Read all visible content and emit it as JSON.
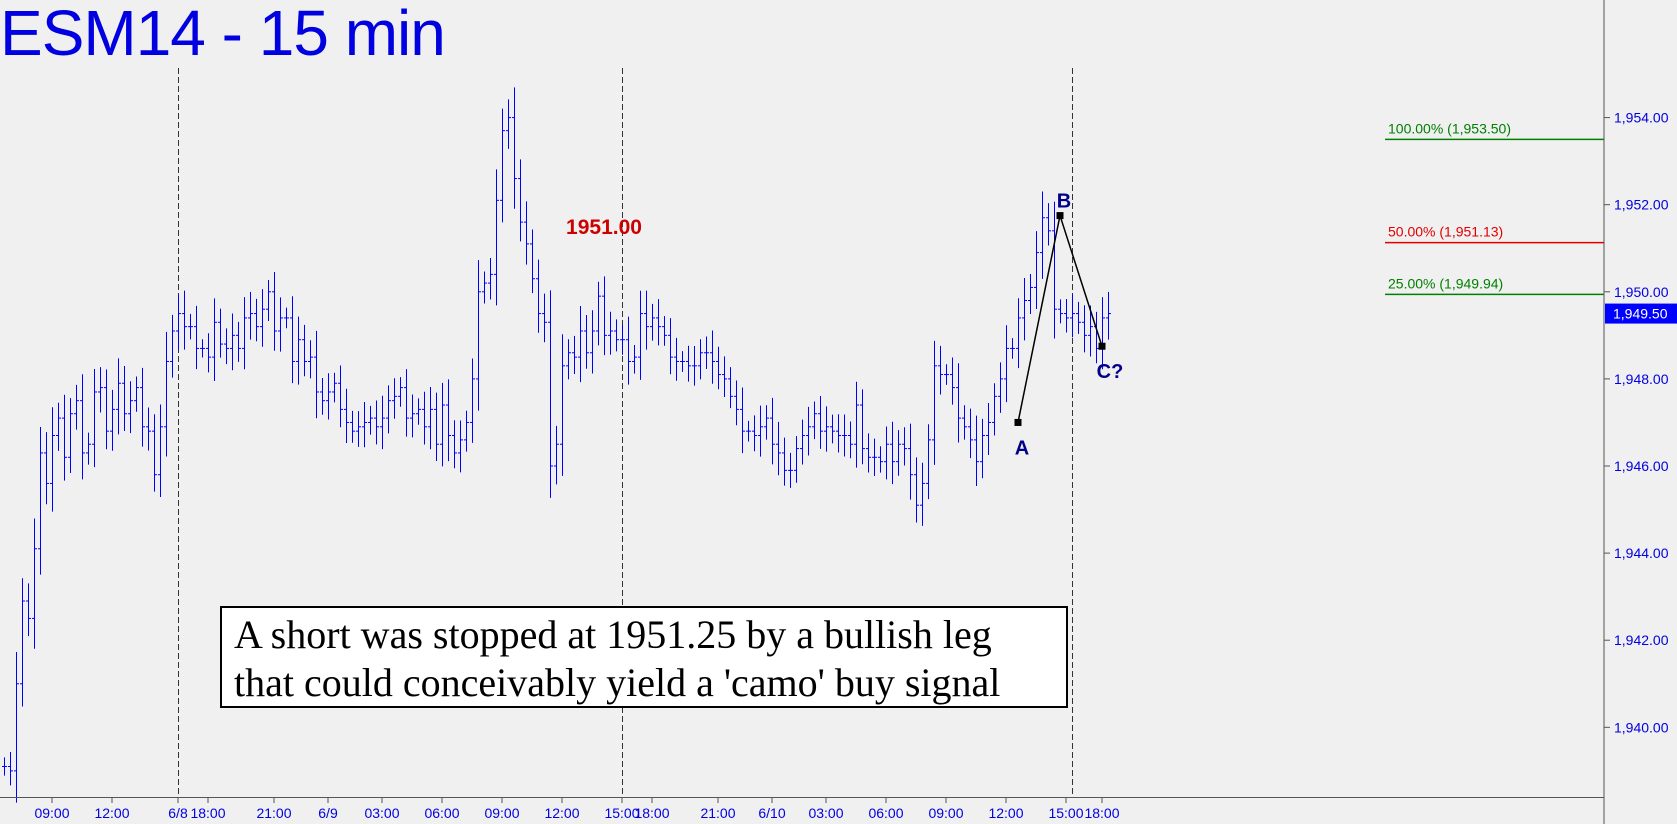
{
  "chart_data": {
    "type": "bar",
    "subtype": "ohlc",
    "title": "ESM14 - 15 min",
    "colors": {
      "bars": "#0000ff",
      "fib_green": "#008000",
      "fib_red": "#e00000",
      "pattern_line": "#000000",
      "labels": "#00008b",
      "price_label": "#cc0000"
    },
    "y_axis": {
      "ylim": [
        1938.4,
        1956.7
      ],
      "ticks": [
        "1,954.00",
        "1,952.00",
        "1,950.00",
        "1,948.00",
        "1,946.00",
        "1,944.00",
        "1,942.00",
        "1,940.00"
      ],
      "tick_values": [
        1954,
        1952,
        1950,
        1948,
        1946,
        1944,
        1942,
        1940
      ],
      "last_price_label": "1,949.50",
      "last_price": 1949.5
    },
    "x_axis": {
      "n_bars": 228,
      "ticks": [
        {
          "label": "09:00",
          "bar": 8
        },
        {
          "label": "12:00",
          "bar": 18
        },
        {
          "label": "6/8",
          "bar": 29
        },
        {
          "label": "18:00",
          "bar": 34
        },
        {
          "label": "21:00",
          "bar": 45
        },
        {
          "label": "6/9",
          "bar": 54
        },
        {
          "label": "03:00",
          "bar": 63
        },
        {
          "label": "06:00",
          "bar": 73
        },
        {
          "label": "09:00",
          "bar": 83
        },
        {
          "label": "12:00",
          "bar": 93
        },
        {
          "label": "15:00",
          "bar": 103
        },
        {
          "label": "18:00",
          "bar": 108
        },
        {
          "label": "21:00",
          "bar": 119
        },
        {
          "label": "6/10",
          "bar": 128
        },
        {
          "label": "03:00",
          "bar": 137
        },
        {
          "label": "06:00",
          "bar": 147
        },
        {
          "label": "09:00",
          "bar": 157
        },
        {
          "label": "12:00",
          "bar": 167
        },
        {
          "label": "15:00",
          "bar": 177
        },
        {
          "label": "18:00",
          "bar": 183
        }
      ],
      "session_lines": [
        29,
        103,
        178
      ]
    },
    "closes": [
      1939.1,
      1939.0,
      1941.0,
      1942.9,
      1942.5,
      1944.1,
      1946.3,
      1945.6,
      1946.7,
      1947.1,
      1946.2,
      1947.2,
      1947.5,
      1946.3,
      1946.5,
      1947.7,
      1947.8,
      1946.8,
      1947.3,
      1947.9,
      1947.2,
      1947.5,
      1947.8,
      1946.9,
      1946.8,
      1945.8,
      1946.9,
      1948.4,
      1949.1,
      1949.5,
      1949.2,
      1949.2,
      1948.7,
      1948.7,
      1948.5,
      1949.3,
      1948.8,
      1948.7,
      1949.0,
      1948.7,
      1949.4,
      1949.5,
      1949.2,
      1949.6,
      1950.0,
      1949.1,
      1949.4,
      1949.4,
      1948.4,
      1948.9,
      1948.4,
      1948.5,
      1947.7,
      1947.5,
      1947.7,
      1947.9,
      1947.3,
      1947.0,
      1946.8,
      1946.9,
      1947.0,
      1947.1,
      1946.9,
      1947.1,
      1947.5,
      1947.6,
      1947.8,
      1947.1,
      1947.2,
      1947.3,
      1946.9,
      1947.3,
      1946.5,
      1947.4,
      1946.7,
      1946.3,
      1946.6,
      1947.0,
      1948.0,
      1950.0,
      1950.2,
      1950.4,
      1952.1,
      1953.7,
      1954.0,
      1952.6,
      1951.6,
      1951.1,
      1950.3,
      1949.5,
      1949.3,
      1946.0,
      1946.5,
      1948.3,
      1948.6,
      1948.5,
      1949.1,
      1948.6,
      1949.1,
      1949.9,
      1949.0,
      1949.1,
      1948.9,
      1948.9,
      1948.4,
      1948.5,
      1949.5,
      1949.2,
      1949.4,
      1949.2,
      1949.0,
      1948.5,
      1948.4,
      1948.4,
      1948.3,
      1948.3,
      1948.6,
      1948.6,
      1948.4,
      1948.1,
      1948.0,
      1947.6,
      1947.3,
      1946.8,
      1946.8,
      1946.7,
      1946.9,
      1947.1,
      1946.5,
      1946.3,
      1945.9,
      1945.9,
      1946.4,
      1946.7,
      1946.9,
      1947.2,
      1946.8,
      1946.9,
      1946.8,
      1946.7,
      1946.7,
      1946.5,
      1947.4,
      1946.4,
      1946.2,
      1946.2,
      1946.1,
      1946.5,
      1946.1,
      1946.5,
      1946.4,
      1945.8,
      1945.1,
      1945.6,
      1946.6,
      1948.3,
      1948.1,
      1948.1,
      1947.8,
      1947.1,
      1946.9,
      1946.6,
      1946.1,
      1946.7,
      1947.0,
      1947.6,
      1948.0,
      1948.7,
      1948.7,
      1949.4,
      1949.8,
      1950.1,
      1950.9,
      1951.7,
      1951.4,
      1949.6,
      1949.5,
      1949.4,
      1949.5,
      1949.3,
      1949.0,
      1949.2,
      1948.7,
      1949.4,
      1949.5
    ],
    "fib_levels": [
      {
        "label": "100.00% (1,953.50)",
        "value": 1953.5,
        "color": "#008000"
      },
      {
        "label": "50.00% (1,951.13)",
        "value": 1951.13,
        "color": "#e00000"
      },
      {
        "label": "25.00% (1,949.94)",
        "value": 1949.94,
        "color": "#008000"
      }
    ],
    "pattern_points": [
      {
        "label": "A",
        "bar": 169,
        "value": 1947.0
      },
      {
        "label": "B",
        "bar": 176,
        "value": 1951.75
      },
      {
        "label": "C?",
        "bar": 183,
        "value": 1948.75
      }
    ],
    "price_annotation": {
      "label": "1951.00",
      "bar": 100,
      "value": 1951.0
    },
    "note": {
      "line1": "A short was stopped at 1951.25 by a bullish leg",
      "line2": "that could conceivably yield a 'camo' buy signal"
    }
  }
}
